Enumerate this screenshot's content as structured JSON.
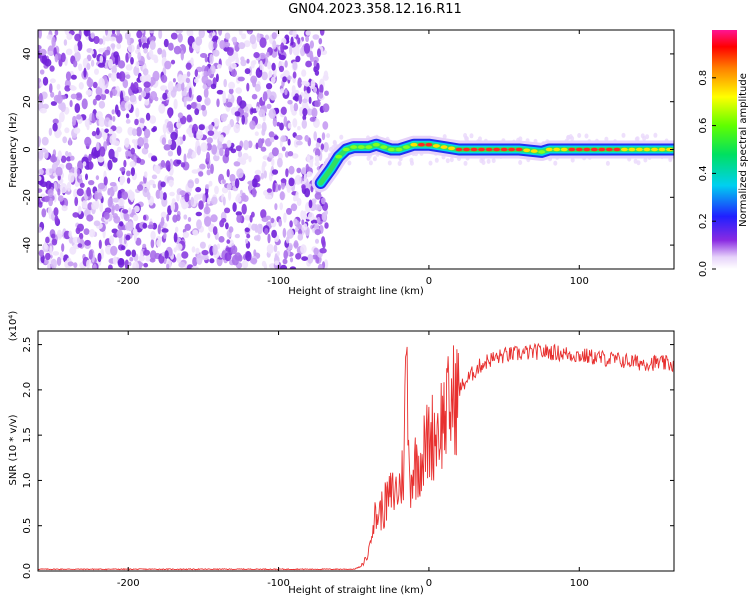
{
  "title": "GN04.2023.358.12.16.R11",
  "chart_data": [
    {
      "type": "heatmap",
      "xlabel": "Height of straight line (km)",
      "ylabel": "Frequency (Hz)",
      "xlim": [
        -260,
        163
      ],
      "ylim": [
        -50,
        50
      ],
      "x_ticks": [
        -200,
        -100,
        0,
        100
      ],
      "y_ticks": [
        -40,
        -20,
        0,
        20,
        40
      ],
      "colorbar": {
        "label": "Normalized spectral amplitude",
        "range": [
          0.0,
          1.0
        ],
        "ticks": [
          "0.0",
          "0.2",
          "0.4",
          "0.6",
          "0.8"
        ]
      },
      "noise_region_x": [
        -260,
        -68
      ],
      "signal_track": {
        "x": [
          -72,
          -65,
          -60,
          -55,
          -50,
          -45,
          -40,
          -35,
          -30,
          -25,
          -20,
          -15,
          -10,
          -5,
          0,
          10,
          20,
          40,
          60,
          75,
          80,
          100,
          120,
          140,
          163
        ],
        "y": [
          -14,
          -8,
          -3,
          0,
          1,
          1,
          1,
          2,
          1,
          0,
          0,
          1,
          2,
          2,
          2,
          1,
          0,
          0,
          0,
          -1,
          0,
          0,
          0,
          0,
          0
        ],
        "amplitude": [
          0.3,
          0.4,
          0.5,
          0.7,
          0.8,
          0.8,
          0.7,
          0.8,
          0.8,
          0.7,
          0.7,
          0.8,
          0.85,
          0.9,
          0.9,
          0.85,
          0.9,
          0.95,
          0.9,
          0.8,
          0.85,
          0.9,
          0.9,
          0.85,
          0.8
        ]
      }
    },
    {
      "type": "line",
      "xlabel": "Height of straight line (km)",
      "ylabel": "SNR (10 * v/v)",
      "y_multiplier": "(x10⁴)",
      "xlim": [
        -260,
        163
      ],
      "ylim": [
        0.0,
        2.65
      ],
      "x_ticks": [
        -200,
        -100,
        0,
        100
      ],
      "y_ticks": [
        "0.0",
        "0.5",
        "1.0",
        "1.5",
        "2.0",
        "2.5"
      ],
      "series": [
        {
          "color": "#e8302f",
          "x": [
            -260,
            -200,
            -150,
            -100,
            -60,
            -50,
            -45,
            -40,
            -38,
            -35,
            -30,
            -25,
            -20,
            -17,
            -15,
            -13,
            -10,
            -5,
            0,
            5,
            10,
            15,
            20,
            25,
            30,
            35,
            40,
            50,
            60,
            70,
            80,
            90,
            100,
            110,
            120,
            130,
            140,
            150,
            163
          ],
          "y": [
            0.02,
            0.02,
            0.02,
            0.02,
            0.02,
            0.02,
            0.05,
            0.2,
            0.55,
            0.6,
            0.7,
            0.85,
            0.9,
            1.1,
            2.4,
            1.0,
            1.15,
            1.25,
            1.45,
            1.55,
            1.7,
            1.85,
            2.0,
            2.1,
            2.2,
            2.28,
            2.33,
            2.38,
            2.4,
            2.42,
            2.42,
            2.4,
            2.38,
            2.36,
            2.34,
            2.32,
            2.3,
            2.3,
            2.28
          ]
        }
      ]
    }
  ]
}
